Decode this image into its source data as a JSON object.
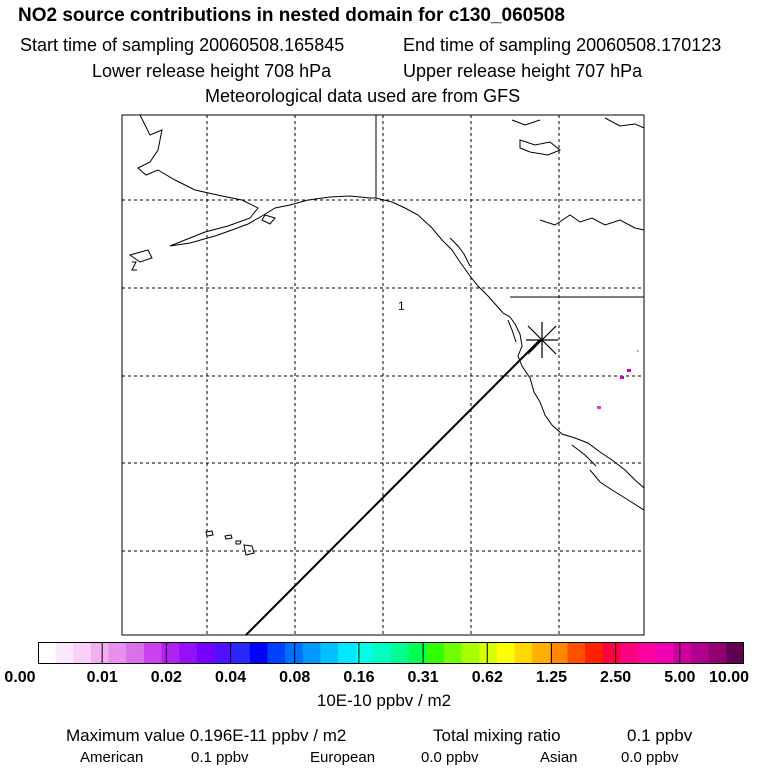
{
  "header": {
    "title": "NO2 source contributions in nested domain for c130_060508",
    "start_label": "Start time of sampling 20060508.165845",
    "end_label": "End time of sampling 20060508.170123",
    "lower_label": "Lower release height  708 hPa",
    "upper_label": "Upper release height  707 hPa",
    "met_label": "Meteorological data used are from GFS"
  },
  "map": {
    "marker_label": "1",
    "release_marker_icon": "asterisk-marker"
  },
  "legend": {
    "colors": [
      "#ffffff",
      "#fce8fc",
      "#f8d0f8",
      "#f0b0f0",
      "#e890ec",
      "#dc70ec",
      "#cc40f0",
      "#b420f4",
      "#9410f8",
      "#7800ff",
      "#5010ff",
      "#2828ff",
      "#0000ff",
      "#0040ff",
      "#0070ff",
      "#0098ff",
      "#00c0ff",
      "#00e8ff",
      "#00ffe8",
      "#00ffc0",
      "#00ff90",
      "#00ff50",
      "#30ff00",
      "#70ff00",
      "#a8ff00",
      "#d8ff00",
      "#ffff00",
      "#ffd800",
      "#ffb000",
      "#ff8800",
      "#ff5000",
      "#ff2000",
      "#ff0040",
      "#ff0080",
      "#ff00a0",
      "#f000b0",
      "#d000a0",
      "#b00090",
      "#900070",
      "#600050"
    ],
    "tick_labels": [
      "0.00",
      "0.01",
      "0.02",
      "0.04",
      "0.08",
      "0.16",
      "0.31",
      "0.62",
      "1.25",
      "2.50",
      "5.00",
      "10.00"
    ],
    "units": "10E-10 ppbv / m2"
  },
  "summary": {
    "max_value": "Maximum value  0.196E-11 ppbv / m2",
    "total_label": "Total mixing ratio",
    "total_value": "0.1 ppbv",
    "american_label": "American",
    "american_value": "0.1 ppbv",
    "european_label": "European",
    "european_value": "0.0 ppbv",
    "asian_label": "Asian",
    "asian_value": "0.0 ppbv"
  }
}
